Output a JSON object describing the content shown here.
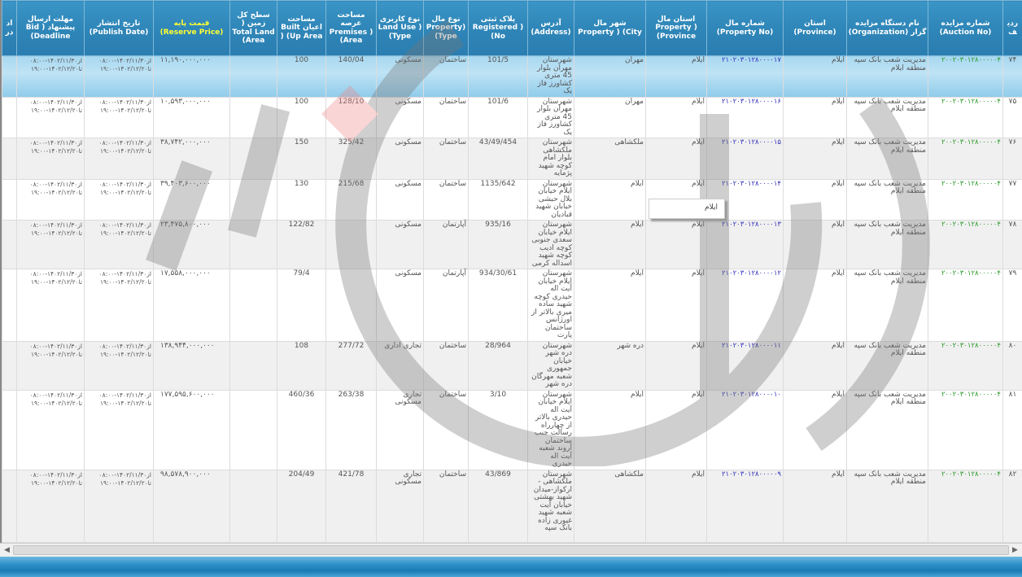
{
  "headers": [
    "ردیف",
    "شماره مزایده (Auction No)",
    "نام دستگاه مزایده گزار (Organization)",
    "استان (Province)",
    "شماره مال (Property No)",
    "استان مال Property ) (Province",
    "شهر مال Property ) (City",
    "آدرس (Address)",
    "پلاک ثبتی Registered ) (No",
    "نوع مال Property) (Type",
    "نوع کاربری Land Use ) (Type",
    "مساحت عرصه Premises ) (Area",
    "مساحت اعیان Built ) (Up Area",
    "سطح کل زمین ( Total Land (Area",
    "قیمت پایه (Reserve Price)",
    "تاریخ انتشار (Publish Date)",
    "مهلت ارسال پیشنهاد ( Bid (Deadline",
    "اد در"
  ],
  "colors": {
    "header": "#2f86b8",
    "reserve_price_header": "#ffff33",
    "auction_no": "#2a9a2a",
    "property_no": "#3333bb",
    "selected_row": "#a8d8f0"
  },
  "selected_row_index": 0,
  "rows": [
    {
      "n": "۷۴",
      "auction": "۲۰۰۲۰۳۰۱۲۸۰۰۰۰۰۴",
      "org": "مدیریت شعب بانک سپه منطقه ایلام",
      "prov": "ایلام",
      "pno": "۲۱۰۲۰۳۰۱۲۸۰۰۰۰۱۷",
      "pprov": "ایلام",
      "city": "مهران",
      "addr": "شهرستان مهران بلوار 45 متری کشاورز فاز یک",
      "reg": "101/5",
      "type": "ساختمان",
      "use": "مسکونی",
      "premises": "140/04",
      "built": "100",
      "land": "",
      "price": "۱۱,۱۹۰,۰۰۰,۰۰۰",
      "pub": "از۱۴۰۲/۱۱/۳۰-۰۸:۰۰ تا۱۴۰۲/۱۲/۲۰-۱۹:۰۰",
      "dead": "از۱۴۰۲/۱۱/۳۰-۰۸:۰۰ تا۱۴۰۲/۱۲/۲۰-۱۹:۰۰"
    },
    {
      "n": "۷۵",
      "auction": "۲۰۰۲۰۳۰۱۲۸۰۰۰۰۰۴",
      "org": "مدیریت شعب بانک سپه منطقه ایلام",
      "prov": "ایلام",
      "pno": "۲۱۰۲۰۳۰۱۲۸۰۰۰۰۱۶",
      "pprov": "ایلام",
      "city": "مهران",
      "addr": "شهرستان مهران بلوار 45 متری کشاورز فاز یک",
      "reg": "101/6",
      "type": "ساختمان",
      "use": "مسکونی",
      "premises": "128/10",
      "built": "100",
      "land": "",
      "price": "۱۰,۵۹۳,۰۰۰,۰۰۰",
      "pub": "از۱۴۰۲/۱۱/۳۰-۰۸:۰۰ تا۱۴۰۲/۱۲/۲۰-۱۹:۰۰",
      "dead": "از۱۴۰۲/۱۱/۳۰-۰۸:۰۰ تا۱۴۰۲/۱۲/۲۰-۱۹:۰۰"
    },
    {
      "n": "۷۶",
      "auction": "۲۰۰۲۰۳۰۱۲۸۰۰۰۰۰۴",
      "org": "مدیریت شعب بانک سپه منطقه ایلام",
      "prov": "ایلام",
      "pno": "۲۱۰۲۰۳۰۱۲۸۰۰۰۰۱۵",
      "pprov": "ایلام",
      "city": "ملکشاهی",
      "addr": "شهرستان ملکشاهی بلوار امام کوچه شهید پژمایه",
      "reg": "43/49/454",
      "type": "ساختمان",
      "use": "مسکونی",
      "premises": "325/42",
      "built": "150",
      "land": "",
      "price": "۳۸,۷۴۲,۰۰۰,۰۰۰",
      "pub": "از۱۴۰۲/۱۱/۳۰-۰۸:۰۰ تا۱۴۰۲/۱۲/۲۰-۱۹:۰۰",
      "dead": "از۱۴۰۲/۱۱/۳۰-۰۸:۰۰ تا۱۴۰۲/۱۲/۲۰-۱۹:۰۰"
    },
    {
      "n": "۷۷",
      "auction": "۲۰۰۲۰۳۰۱۲۸۰۰۰۰۰۴",
      "org": "مدیریت شعب بانک سپه منطقه ایلام",
      "prov": "ایلام",
      "pno": "۲۱۰۲۰۳۰۱۲۸۰۰۰۰۱۴",
      "pprov": "ایلام",
      "city": "ایلام",
      "addr": "شهرستان ایلام خیابان بلال حبشی خیابان شهید قبادیان",
      "reg": "1135/642",
      "type": "ساختمان",
      "use": "مسکونی",
      "premises": "215/68",
      "built": "130",
      "land": "",
      "price": "۳۹,۴۰۳,۶۰۰,۰۰۰",
      "pub": "از۱۴۰۲/۱۱/۳۰-۰۸:۰۰ تا۱۴۰۲/۱۲/۲۰-۱۹:۰۰",
      "dead": "از۱۴۰۲/۱۱/۳۰-۰۸:۰۰ تا۱۴۰۲/۱۲/۲۰-۱۹:۰۰"
    },
    {
      "n": "۷۸",
      "auction": "۲۰۰۲۰۳۰۱۲۸۰۰۰۰۰۴",
      "org": "مدیریت شعب بانک سپه منطقه ایلام",
      "prov": "ایلام",
      "pno": "۲۱۰۲۰۳۰۱۲۸۰۰۰۰۱۳",
      "pprov": "ایلام",
      "city": "ایلام",
      "addr": "شهرستان ایلام خیابان سعدی جنوبی کوچه ادیب کوچه شهید اسداله کرمی",
      "reg": "935/16",
      "type": "آپارتمان",
      "use": "مسکونی",
      "premises": "",
      "built": "122/82",
      "land": "",
      "price": "۲۳,۴۷۵,۸۰۰,۰۰۰",
      "pub": "از۱۴۰۲/۱۱/۳۰-۰۸:۰۰ تا۱۴۰۲/۱۲/۲۰-۱۹:۰۰",
      "dead": "از۱۴۰۲/۱۱/۳۰-۰۸:۰۰ تا۱۴۰۲/۱۲/۲۰-۱۹:۰۰"
    },
    {
      "n": "۷۹",
      "auction": "۲۰۰۲۰۳۰۱۲۸۰۰۰۰۰۴",
      "org": "مدیریت شعب بانک سپه منطقه ایلام",
      "prov": "ایلام",
      "pno": "۲۱۰۲۰۳۰۱۲۸۰۰۰۰۱۲",
      "pprov": "ایلام",
      "city": "ایلام",
      "addr": "شهرستان ایلام خیابان آیت اله حیدری کوچه شهید ساده میری بالاتر از اورژانس ساختمان پارت",
      "reg": "934/30/61",
      "type": "آپارتمان",
      "use": "مسکونی",
      "premises": "",
      "built": "79/4",
      "land": "",
      "price": "۱۷,۵۵۸,۰۰۰,۰۰۰",
      "pub": "از۱۴۰۲/۱۱/۳۰-۰۸:۰۰ تا۱۴۰۲/۱۲/۲۰-۱۹:۰۰",
      "dead": "از۱۴۰۲/۱۱/۳۰-۰۸:۰۰ تا۱۴۰۲/۱۲/۲۰-۱۹:۰۰"
    },
    {
      "n": "۸۰",
      "auction": "۲۰۰۲۰۳۰۱۲۸۰۰۰۰۰۴",
      "org": "مدیریت شعب بانک سپه منطقه ایلام",
      "prov": "ایلام",
      "pno": "۲۱۰۲۰۳۰۱۲۸۰۰۰۰۱۱",
      "pprov": "ایلام",
      "city": "دره شهر",
      "addr": "شهرستان دره شهر خیابان جمهوری شعبه مهرگان دره شهر",
      "reg": "28/964",
      "type": "ساختمان",
      "use": "تجاری اداری",
      "premises": "277/72",
      "built": "108",
      "land": "",
      "price": "۱۳۸,۹۴۴,۰۰۰,۰۰۰",
      "pub": "از۱۴۰۲/۱۱/۳۰-۰۸:۰۰ تا۱۴۰۲/۱۲/۲۰-۱۹:۰۰",
      "dead": "از۱۴۰۲/۱۱/۳۰-۰۸:۰۰ تا۱۴۰۲/۱۲/۲۰-۱۹:۰۰"
    },
    {
      "n": "۸۱",
      "auction": "۲۰۰۲۰۳۰۱۲۸۰۰۰۰۰۴",
      "org": "مدیریت شعب بانک سپه منطقه ایلام",
      "prov": "ایلام",
      "pno": "۲۱۰۲۰۳۰۱۲۸۰۰۰۰۱۰",
      "pprov": "ایلام",
      "city": "ایلام",
      "addr": "شهرستان ایلام خیابان آیت اله حیدری بالاتر از چهارراه رسالت جنب ساختمان آروند شعبه آیت اله حیدری",
      "reg": "3/10",
      "type": "ساختمان",
      "use": "تجاری مسکونی",
      "premises": "263/38",
      "built": "460/36",
      "land": "",
      "price": "۱۷۷,۵۹۵,۶۰۰,۰۰۰",
      "pub": "از۱۴۰۲/۱۱/۳۰-۰۸:۰۰ تا۱۴۰۲/۱۲/۲۰-۱۹:۰۰",
      "dead": "از۱۴۰۲/۱۱/۳۰-۰۸:۰۰ تا۱۴۰۲/۱۲/۲۰-۱۹:۰۰"
    },
    {
      "n": "۸۲",
      "auction": "۲۰۰۲۰۳۰۱۲۸۰۰۰۰۰۴",
      "org": "مدیریت شعب بانک سپه منطقه ایلام",
      "prov": "ایلام",
      "pno": "۲۱۰۲۰۳۰۱۲۸۰۰۰۰۰۹",
      "pprov": "ایلام",
      "city": "ملکشاهی",
      "addr": "شهرستان ملکشاهی - ارکواز-میدان شهید بهشتی خیابان آیت شعبه شهید غیوری زاده بانک سپه",
      "reg": "43/869",
      "type": "ساختمان",
      "use": "تجاری مسکونی",
      "premises": "421/78",
      "built": "204/49",
      "land": "",
      "price": "۹۸,۵۷۸,۹۰۰,۰۰۰",
      "pub": "از۱۴۰۲/۱۱/۳۰-۰۸:۰۰ تا۱۴۰۲/۱۲/۲۰-۱۹:۰۰",
      "dead": "از۱۴۰۲/۱۱/۳۰-۰۸:۰۰ تا۱۴۰۲/۱۲/۲۰-۱۹:۰۰"
    }
  ],
  "tooltip": "ایلام",
  "scrollbar": {
    "left_arrow": "◀",
    "right_arrow": "▶"
  }
}
